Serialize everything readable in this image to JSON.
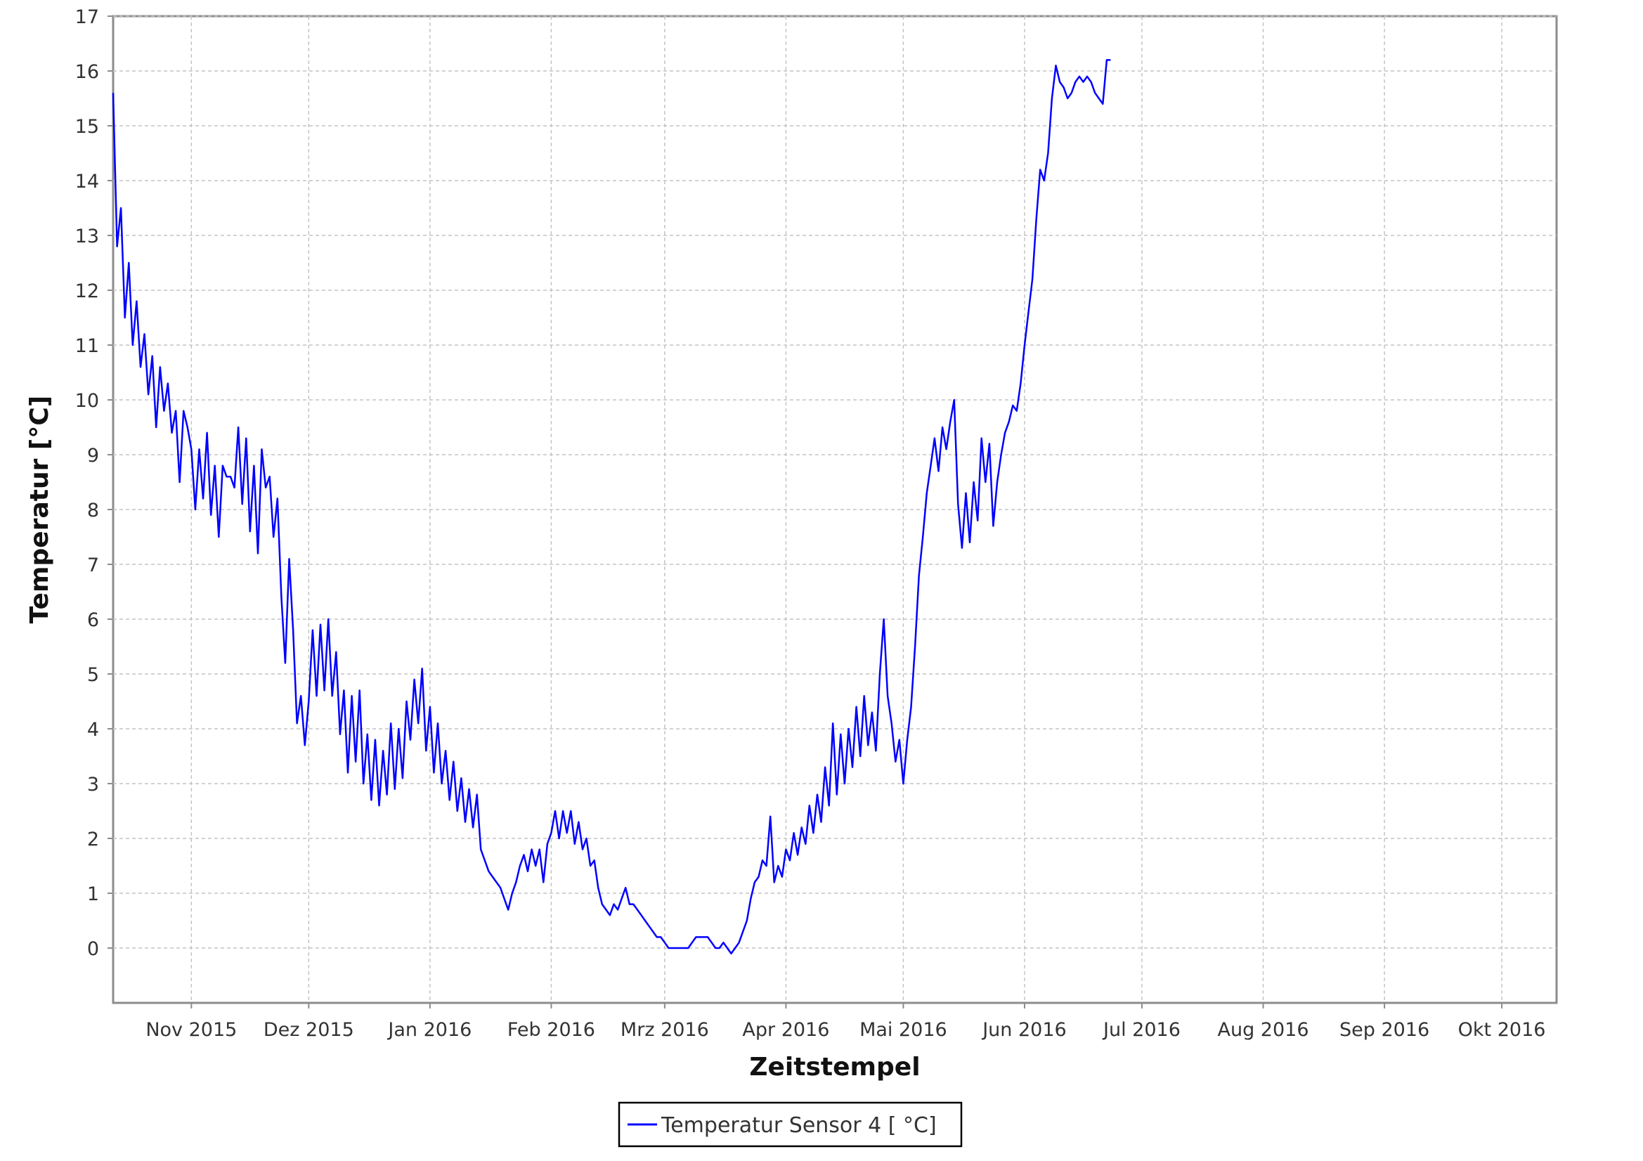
{
  "chart_data": {
    "type": "line",
    "title": "",
    "xlabel": "Zeitstempel",
    "ylabel": "Temperatur [°C]",
    "grid": true,
    "legend_position": "bottom-center",
    "xlim": [
      "2015-10-12",
      "2016-10-15"
    ],
    "ylim": [
      -1,
      17
    ],
    "x_ticks": [
      {
        "date": "2015-11-01",
        "label": "Nov 2015"
      },
      {
        "date": "2015-12-01",
        "label": "Dez 2015"
      },
      {
        "date": "2016-01-01",
        "label": "Jan 2016"
      },
      {
        "date": "2016-02-01",
        "label": "Feb 2016"
      },
      {
        "date": "2016-03-01",
        "label": "Mrz 2016"
      },
      {
        "date": "2016-04-01",
        "label": "Apr 2016"
      },
      {
        "date": "2016-05-01",
        "label": "Mai 2016"
      },
      {
        "date": "2016-06-01",
        "label": "Jun 2016"
      },
      {
        "date": "2016-07-01",
        "label": "Jul 2016"
      },
      {
        "date": "2016-08-01",
        "label": "Aug 2016"
      },
      {
        "date": "2016-09-01",
        "label": "Sep 2016"
      },
      {
        "date": "2016-10-01",
        "label": "Okt 2016"
      }
    ],
    "y_ticks": [
      0,
      1,
      2,
      3,
      4,
      5,
      6,
      7,
      8,
      9,
      10,
      11,
      12,
      13,
      14,
      15,
      16,
      17
    ],
    "series": [
      {
        "name": "Temperatur Sensor 4 [ °C]",
        "color": "#0000ff",
        "points": [
          [
            "2015-10-12",
            15.6
          ],
          [
            "2015-10-13",
            12.8
          ],
          [
            "2015-10-14",
            13.5
          ],
          [
            "2015-10-15",
            11.5
          ],
          [
            "2015-10-16",
            12.5
          ],
          [
            "2015-10-17",
            11.0
          ],
          [
            "2015-10-18",
            11.8
          ],
          [
            "2015-10-19",
            10.6
          ],
          [
            "2015-10-20",
            11.2
          ],
          [
            "2015-10-21",
            10.1
          ],
          [
            "2015-10-22",
            10.8
          ],
          [
            "2015-10-23",
            9.5
          ],
          [
            "2015-10-24",
            10.6
          ],
          [
            "2015-10-25",
            9.8
          ],
          [
            "2015-10-26",
            10.3
          ],
          [
            "2015-10-27",
            9.4
          ],
          [
            "2015-10-28",
            9.8
          ],
          [
            "2015-10-29",
            8.5
          ],
          [
            "2015-10-30",
            9.8
          ],
          [
            "2015-10-31",
            9.5
          ],
          [
            "2015-11-01",
            9.1
          ],
          [
            "2015-11-02",
            8.0
          ],
          [
            "2015-11-03",
            9.1
          ],
          [
            "2015-11-04",
            8.2
          ],
          [
            "2015-11-05",
            9.4
          ],
          [
            "2015-11-06",
            7.9
          ],
          [
            "2015-11-07",
            8.8
          ],
          [
            "2015-11-08",
            7.5
          ],
          [
            "2015-11-09",
            8.8
          ],
          [
            "2015-11-10",
            8.6
          ],
          [
            "2015-11-11",
            8.6
          ],
          [
            "2015-11-12",
            8.4
          ],
          [
            "2015-11-13",
            9.5
          ],
          [
            "2015-11-14",
            8.1
          ],
          [
            "2015-11-15",
            9.3
          ],
          [
            "2015-11-16",
            7.6
          ],
          [
            "2015-11-17",
            8.8
          ],
          [
            "2015-11-18",
            7.2
          ],
          [
            "2015-11-19",
            9.1
          ],
          [
            "2015-11-20",
            8.4
          ],
          [
            "2015-11-21",
            8.6
          ],
          [
            "2015-11-22",
            7.5
          ],
          [
            "2015-11-23",
            8.2
          ],
          [
            "2015-11-24",
            6.4
          ],
          [
            "2015-11-25",
            5.2
          ],
          [
            "2015-11-26",
            7.1
          ],
          [
            "2015-11-27",
            5.8
          ],
          [
            "2015-11-28",
            4.1
          ],
          [
            "2015-11-29",
            4.6
          ],
          [
            "2015-11-30",
            3.7
          ],
          [
            "2015-12-01",
            4.5
          ],
          [
            "2015-12-02",
            5.8
          ],
          [
            "2015-12-03",
            4.6
          ],
          [
            "2015-12-04",
            5.9
          ],
          [
            "2015-12-05",
            4.7
          ],
          [
            "2015-12-06",
            6.0
          ],
          [
            "2015-12-07",
            4.6
          ],
          [
            "2015-12-08",
            5.4
          ],
          [
            "2015-12-09",
            3.9
          ],
          [
            "2015-12-10",
            4.7
          ],
          [
            "2015-12-11",
            3.2
          ],
          [
            "2015-12-12",
            4.6
          ],
          [
            "2015-12-13",
            3.4
          ],
          [
            "2015-12-14",
            4.7
          ],
          [
            "2015-12-15",
            3.0
          ],
          [
            "2015-12-16",
            3.9
          ],
          [
            "2015-12-17",
            2.7
          ],
          [
            "2015-12-18",
            3.8
          ],
          [
            "2015-12-19",
            2.6
          ],
          [
            "2015-12-20",
            3.6
          ],
          [
            "2015-12-21",
            2.8
          ],
          [
            "2015-12-22",
            4.1
          ],
          [
            "2015-12-23",
            2.9
          ],
          [
            "2015-12-24",
            4.0
          ],
          [
            "2015-12-25",
            3.1
          ],
          [
            "2015-12-26",
            4.5
          ],
          [
            "2015-12-27",
            3.8
          ],
          [
            "2015-12-28",
            4.9
          ],
          [
            "2015-12-29",
            4.1
          ],
          [
            "2015-12-30",
            5.1
          ],
          [
            "2015-12-31",
            3.6
          ],
          [
            "2016-01-01",
            4.4
          ],
          [
            "2016-01-02",
            3.2
          ],
          [
            "2016-01-03",
            4.1
          ],
          [
            "2016-01-04",
            3.0
          ],
          [
            "2016-01-05",
            3.6
          ],
          [
            "2016-01-06",
            2.7
          ],
          [
            "2016-01-07",
            3.4
          ],
          [
            "2016-01-08",
            2.5
          ],
          [
            "2016-01-09",
            3.1
          ],
          [
            "2016-01-10",
            2.3
          ],
          [
            "2016-01-11",
            2.9
          ],
          [
            "2016-01-12",
            2.2
          ],
          [
            "2016-01-13",
            2.8
          ],
          [
            "2016-01-14",
            1.8
          ],
          [
            "2016-01-15",
            1.6
          ],
          [
            "2016-01-16",
            1.4
          ],
          [
            "2016-01-17",
            1.3
          ],
          [
            "2016-01-18",
            1.2
          ],
          [
            "2016-01-19",
            1.1
          ],
          [
            "2016-01-20",
            0.9
          ],
          [
            "2016-01-21",
            0.7
          ],
          [
            "2016-01-22",
            1.0
          ],
          [
            "2016-01-23",
            1.2
          ],
          [
            "2016-01-24",
            1.5
          ],
          [
            "2016-01-25",
            1.7
          ],
          [
            "2016-01-26",
            1.4
          ],
          [
            "2016-01-27",
            1.8
          ],
          [
            "2016-01-28",
            1.5
          ],
          [
            "2016-01-29",
            1.8
          ],
          [
            "2016-01-30",
            1.2
          ],
          [
            "2016-01-31",
            1.9
          ],
          [
            "2016-02-01",
            2.1
          ],
          [
            "2016-02-02",
            2.5
          ],
          [
            "2016-02-03",
            2.0
          ],
          [
            "2016-02-04",
            2.5
          ],
          [
            "2016-02-05",
            2.1
          ],
          [
            "2016-02-06",
            2.5
          ],
          [
            "2016-02-07",
            1.9
          ],
          [
            "2016-02-08",
            2.3
          ],
          [
            "2016-02-09",
            1.8
          ],
          [
            "2016-02-10",
            2.0
          ],
          [
            "2016-02-11",
            1.5
          ],
          [
            "2016-02-12",
            1.6
          ],
          [
            "2016-02-13",
            1.1
          ],
          [
            "2016-02-14",
            0.8
          ],
          [
            "2016-02-15",
            0.7
          ],
          [
            "2016-02-16",
            0.6
          ],
          [
            "2016-02-17",
            0.8
          ],
          [
            "2016-02-18",
            0.7
          ],
          [
            "2016-02-19",
            0.9
          ],
          [
            "2016-02-20",
            1.1
          ],
          [
            "2016-02-21",
            0.8
          ],
          [
            "2016-02-22",
            0.8
          ],
          [
            "2016-02-23",
            0.7
          ],
          [
            "2016-02-24",
            0.6
          ],
          [
            "2016-02-25",
            0.5
          ],
          [
            "2016-02-26",
            0.4
          ],
          [
            "2016-02-27",
            0.3
          ],
          [
            "2016-02-28",
            0.2
          ],
          [
            "2016-02-29",
            0.2
          ],
          [
            "2016-03-01",
            0.1
          ],
          [
            "2016-03-02",
            0.0
          ],
          [
            "2016-03-03",
            0.0
          ],
          [
            "2016-03-04",
            0.0
          ],
          [
            "2016-03-05",
            0.0
          ],
          [
            "2016-03-06",
            0.0
          ],
          [
            "2016-03-07",
            0.0
          ],
          [
            "2016-03-08",
            0.1
          ],
          [
            "2016-03-09",
            0.2
          ],
          [
            "2016-03-10",
            0.2
          ],
          [
            "2016-03-11",
            0.2
          ],
          [
            "2016-03-12",
            0.2
          ],
          [
            "2016-03-13",
            0.1
          ],
          [
            "2016-03-14",
            0.0
          ],
          [
            "2016-03-15",
            0.0
          ],
          [
            "2016-03-16",
            0.1
          ],
          [
            "2016-03-17",
            0.0
          ],
          [
            "2016-03-18",
            -0.1
          ],
          [
            "2016-03-19",
            0.0
          ],
          [
            "2016-03-20",
            0.1
          ],
          [
            "2016-03-21",
            0.3
          ],
          [
            "2016-03-22",
            0.5
          ],
          [
            "2016-03-23",
            0.9
          ],
          [
            "2016-03-24",
            1.2
          ],
          [
            "2016-03-25",
            1.3
          ],
          [
            "2016-03-26",
            1.6
          ],
          [
            "2016-03-27",
            1.5
          ],
          [
            "2016-03-28",
            2.4
          ],
          [
            "2016-03-29",
            1.2
          ],
          [
            "2016-03-30",
            1.5
          ],
          [
            "2016-03-31",
            1.3
          ],
          [
            "2016-04-01",
            1.8
          ],
          [
            "2016-04-02",
            1.6
          ],
          [
            "2016-04-03",
            2.1
          ],
          [
            "2016-04-04",
            1.7
          ],
          [
            "2016-04-05",
            2.2
          ],
          [
            "2016-04-06",
            1.9
          ],
          [
            "2016-04-07",
            2.6
          ],
          [
            "2016-04-08",
            2.1
          ],
          [
            "2016-04-09",
            2.8
          ],
          [
            "2016-04-10",
            2.3
          ],
          [
            "2016-04-11",
            3.3
          ],
          [
            "2016-04-12",
            2.6
          ],
          [
            "2016-04-13",
            4.1
          ],
          [
            "2016-04-14",
            2.8
          ],
          [
            "2016-04-15",
            3.9
          ],
          [
            "2016-04-16",
            3.0
          ],
          [
            "2016-04-17",
            4.0
          ],
          [
            "2016-04-18",
            3.3
          ],
          [
            "2016-04-19",
            4.4
          ],
          [
            "2016-04-20",
            3.5
          ],
          [
            "2016-04-21",
            4.6
          ],
          [
            "2016-04-22",
            3.7
          ],
          [
            "2016-04-23",
            4.3
          ],
          [
            "2016-04-24",
            3.6
          ],
          [
            "2016-04-25",
            5.0
          ],
          [
            "2016-04-26",
            6.0
          ],
          [
            "2016-04-27",
            4.6
          ],
          [
            "2016-04-28",
            4.1
          ],
          [
            "2016-04-29",
            3.4
          ],
          [
            "2016-04-30",
            3.8
          ],
          [
            "2016-05-01",
            3.0
          ],
          [
            "2016-05-02",
            3.8
          ],
          [
            "2016-05-03",
            4.4
          ],
          [
            "2016-05-04",
            5.5
          ],
          [
            "2016-05-05",
            6.8
          ],
          [
            "2016-05-06",
            7.5
          ],
          [
            "2016-05-07",
            8.3
          ],
          [
            "2016-05-08",
            8.8
          ],
          [
            "2016-05-09",
            9.3
          ],
          [
            "2016-05-10",
            8.7
          ],
          [
            "2016-05-11",
            9.5
          ],
          [
            "2016-05-12",
            9.1
          ],
          [
            "2016-05-13",
            9.6
          ],
          [
            "2016-05-14",
            10.0
          ],
          [
            "2016-05-15",
            8.1
          ],
          [
            "2016-05-16",
            7.3
          ],
          [
            "2016-05-17",
            8.3
          ],
          [
            "2016-05-18",
            7.4
          ],
          [
            "2016-05-19",
            8.5
          ],
          [
            "2016-05-20",
            7.8
          ],
          [
            "2016-05-21",
            9.3
          ],
          [
            "2016-05-22",
            8.5
          ],
          [
            "2016-05-23",
            9.2
          ],
          [
            "2016-05-24",
            7.7
          ],
          [
            "2016-05-25",
            8.5
          ],
          [
            "2016-05-26",
            9.0
          ],
          [
            "2016-05-27",
            9.4
          ],
          [
            "2016-05-28",
            9.6
          ],
          [
            "2016-05-29",
            9.9
          ],
          [
            "2016-05-30",
            9.8
          ],
          [
            "2016-05-31",
            10.3
          ],
          [
            "2016-06-01",
            11.0
          ],
          [
            "2016-06-02",
            11.6
          ],
          [
            "2016-06-03",
            12.2
          ],
          [
            "2016-06-04",
            13.3
          ],
          [
            "2016-06-05",
            14.2
          ],
          [
            "2016-06-06",
            14.0
          ],
          [
            "2016-06-07",
            14.5
          ],
          [
            "2016-06-08",
            15.5
          ],
          [
            "2016-06-09",
            16.1
          ],
          [
            "2016-06-10",
            15.8
          ],
          [
            "2016-06-11",
            15.7
          ],
          [
            "2016-06-12",
            15.5
          ],
          [
            "2016-06-13",
            15.6
          ],
          [
            "2016-06-14",
            15.8
          ],
          [
            "2016-06-15",
            15.9
          ],
          [
            "2016-06-16",
            15.8
          ],
          [
            "2016-06-17",
            15.9
          ],
          [
            "2016-06-18",
            15.8
          ],
          [
            "2016-06-19",
            15.6
          ],
          [
            "2016-06-20",
            15.5
          ],
          [
            "2016-06-21",
            15.4
          ],
          [
            "2016-06-22",
            16.2
          ],
          [
            "2016-06-23",
            16.2
          ]
        ]
      }
    ]
  }
}
